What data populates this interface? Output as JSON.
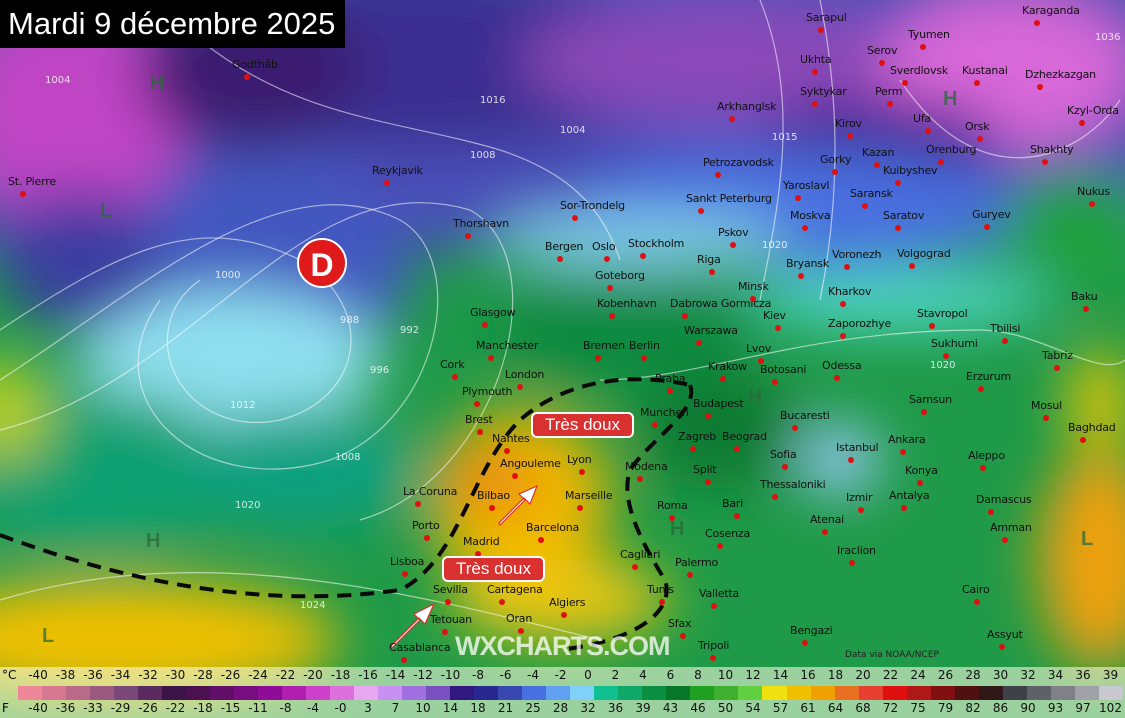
{
  "title": "Mardi 9 décembre 2025",
  "low_marker": "D",
  "annotations": [
    "Très doux",
    "Très doux"
  ],
  "watermark": "WXCHARTS.COM",
  "credit": "Data via NOAA/NCEP",
  "pressure_centers": [
    "L",
    "H",
    "H",
    "H",
    "H",
    "L",
    "L",
    "H"
  ],
  "isobar_labels": [
    "1004",
    "1008",
    "1016",
    "1004",
    "1000",
    "988",
    "992",
    "996",
    "1012",
    "1008",
    "1020",
    "1015",
    "1020",
    "1036",
    "1020",
    "1024"
  ],
  "cities": [
    "Godthåb",
    "St. Pierre",
    "Reykjavik",
    "Thorshavn",
    "Sor-Trondelg",
    "Bergen",
    "Oslo",
    "Stockholm",
    "Goteborg",
    "Kobenhavn",
    "Glasgow",
    "Manchester",
    "Cork",
    "London",
    "Plymouth",
    "Bremen",
    "Berlin",
    "Dabrowa Gormicza",
    "Warszawa",
    "Minsk",
    "Riga",
    "Pskov",
    "Sankt Peterburg",
    "Petrozavodsk",
    "Arkhanglsk",
    "Ukhta",
    "Syktykar",
    "Sarapul",
    "Serov",
    "Tyumen",
    "Karaganda",
    "Sverdlovsk",
    "Kustanai",
    "Dzhezkazgan",
    "Perm",
    "Kirov",
    "Ufa",
    "Orsk",
    "Kzyl-Orda",
    "Orenburg",
    "Shakhty",
    "Gorky",
    "Kazan",
    "Kuibyshev",
    "Yaroslavl",
    "Saransk",
    "Moskva",
    "Saratov",
    "Guryev",
    "Nukus",
    "Voronezh",
    "Volgograd",
    "Bryansk",
    "Kharkov",
    "Kiev",
    "Zaporozhye",
    "Stavropol",
    "Baku",
    "Tbilisi",
    "Sukhumi",
    "Tabriz",
    "Erzurum",
    "Samsun",
    "Mosul",
    "Baghdad",
    "Botosani",
    "Odessa",
    "Bucaresti",
    "Istanbul",
    "Ankara",
    "Sofia",
    "Konya",
    "Aleppo",
    "Thessaloniki",
    "Izmir",
    "Antalya",
    "Damascus",
    "Amman",
    "Atenai",
    "Iraclion",
    "Cairo",
    "Bengazi",
    "Assyut",
    "Krakow",
    "Lvov",
    "Budapest",
    "Praha",
    "Munchen",
    "Zagreb",
    "Beograd",
    "Brest",
    "Nantes",
    "Angouleme",
    "Lyon",
    "Bilbao",
    "La Coruna",
    "Marseille",
    "Modena",
    "Split",
    "Roma",
    "Bari",
    "Porto",
    "Madrid",
    "Barcelona",
    "Cosenza",
    "Lisboa",
    "Cagliari",
    "Palermo",
    "Sevilla",
    "Cartagena",
    "Valletta",
    "Algiers",
    "Tunis",
    "Tetouan",
    "Oran",
    "Sfax",
    "Casablanca",
    "Tripoli"
  ],
  "legend": {
    "celsius_unit": "°C",
    "fahrenheit_unit": "F",
    "celsius": [
      "-40",
      "-38",
      "-36",
      "-34",
      "-32",
      "-30",
      "-28",
      "-26",
      "-24",
      "-22",
      "-20",
      "-18",
      "-16",
      "-14",
      "-12",
      "-10",
      "-8",
      "-6",
      "-4",
      "-2",
      "0",
      "2",
      "4",
      "6",
      "8",
      "10",
      "12",
      "14",
      "16",
      "18",
      "20",
      "22",
      "24",
      "26",
      "28",
      "30",
      "32",
      "34",
      "36",
      "39"
    ],
    "fahrenheit": [
      "-40",
      "-36",
      "-33",
      "-29",
      "-26",
      "-22",
      "-18",
      "-15",
      "-11",
      "-8",
      "-4",
      "-0",
      "3",
      "7",
      "10",
      "14",
      "18",
      "21",
      "25",
      "28",
      "32",
      "36",
      "39",
      "43",
      "46",
      "50",
      "54",
      "57",
      "61",
      "64",
      "68",
      "72",
      "75",
      "79",
      "82",
      "86",
      "90",
      "93",
      "97",
      "102"
    ],
    "colors": [
      "#ee8898",
      "#d87890",
      "#b86a88",
      "#9a5a80",
      "#7a4878",
      "#5a2a60",
      "#3c1448",
      "#4a1050",
      "#600e68",
      "#760e80",
      "#900c98",
      "#b020b0",
      "#cc40cc",
      "#dc70dc",
      "#e8a8f0",
      "#c890f0",
      "#a070e0",
      "#7850c0",
      "#301880",
      "#282890",
      "#3848b0",
      "#4870e0",
      "#60a0f0",
      "#80d0f8",
      "#10c090",
      "#10a868",
      "#0a9040",
      "#087828",
      "#20a020",
      "#40b030",
      "#60d040",
      "#f0e010",
      "#f0c000",
      "#f0a000",
      "#e87020",
      "#e84030",
      "#e01010",
      "#b01818",
      "#801010",
      "#501010",
      "#301818",
      "#404048",
      "#606068",
      "#808088",
      "#a0a0a8",
      "#c8c8d0"
    ]
  },
  "colors": {
    "title_bg": "#000000",
    "annotation_bg": "#d93030",
    "low_marker": "#e01a1a",
    "city_dot": "#e01010"
  }
}
